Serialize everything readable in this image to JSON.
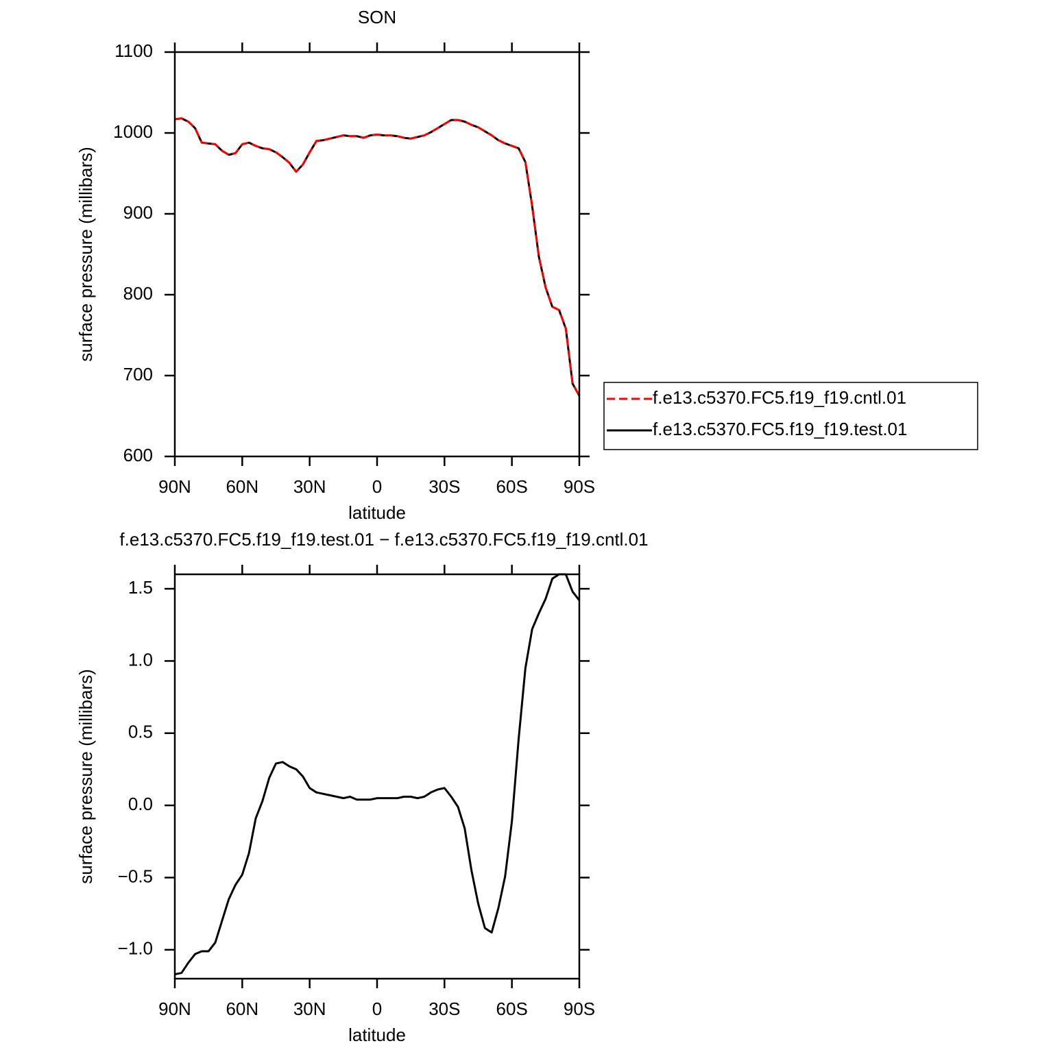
{
  "chart_data": [
    {
      "type": "line",
      "title": "SON",
      "x_label": "latitude",
      "y_label": "surface pressure (millibars)",
      "x": [
        90,
        87,
        84,
        81,
        78,
        75,
        72,
        69,
        66,
        63,
        60,
        57,
        54,
        51,
        48,
        45,
        42,
        39,
        36,
        33,
        30,
        27,
        24,
        21,
        18,
        15,
        12,
        9,
        6,
        3,
        0,
        -3,
        -6,
        -9,
        -12,
        -15,
        -18,
        -21,
        -24,
        -27,
        -30,
        -33,
        -36,
        -39,
        -42,
        -45,
        -48,
        -51,
        -54,
        -57,
        -60,
        -63,
        -66,
        -69,
        -72,
        -75,
        -78,
        -81,
        -84,
        -87,
        -90
      ],
      "xlim": [
        90,
        -90
      ],
      "xticks": [
        {
          "value": 90,
          "label": "90N"
        },
        {
          "value": 60,
          "label": "60N"
        },
        {
          "value": 30,
          "label": "30N"
        },
        0,
        {
          "value": -30,
          "label": "30S"
        },
        {
          "value": -60,
          "label": "60S"
        },
        {
          "value": -90,
          "label": "90S"
        }
      ],
      "ylim": [
        600,
        1100
      ],
      "yticks": [
        600,
        700,
        800,
        900,
        1000,
        1100
      ],
      "legend": "right",
      "series": [
        {
          "name": "f.e13.c5370.FC5.f19_f19.cntl.01",
          "color": "#ff0000",
          "dash": true,
          "values": [
            1017,
            1018,
            1014,
            1006,
            988,
            987,
            986,
            978,
            973,
            975,
            986,
            988,
            984,
            981,
            980,
            976,
            970,
            963,
            952,
            961,
            976,
            990,
            991,
            993,
            995,
            997,
            996,
            996,
            994,
            997,
            998,
            997,
            997,
            996,
            994,
            993,
            995,
            997,
            1001,
            1006,
            1011,
            1016,
            1016,
            1014,
            1010,
            1007,
            1002,
            997,
            991,
            987,
            984,
            981,
            964,
            910,
            847,
            809,
            785,
            781,
            758,
            690,
            675
          ]
        },
        {
          "name": "f.e13.c5370.FC5.f19_f19.test.01",
          "color": "#000000",
          "dash": false,
          "values": [
            1017,
            1018,
            1014,
            1006,
            988,
            987,
            986,
            978,
            973,
            975,
            986,
            988,
            984,
            981,
            980,
            976,
            970,
            963,
            952,
            961,
            976,
            990,
            991,
            993,
            995,
            997,
            996,
            996,
            994,
            997,
            998,
            997,
            997,
            996,
            994,
            993,
            995,
            997,
            1001,
            1006,
            1011,
            1016,
            1016,
            1014,
            1010,
            1007,
            1002,
            997,
            991,
            987,
            984,
            981,
            964,
            910,
            847,
            809,
            785,
            781,
            758,
            690,
            675
          ]
        }
      ]
    },
    {
      "type": "line",
      "title": "f.e13.c5370.FC5.f19_f19.test.01 − f.e13.c5370.FC5.f19_f19.cntl.01",
      "x_label": "latitude",
      "y_label": "surface pressure (millibars)",
      "x": [
        90,
        87,
        84,
        81,
        78,
        75,
        72,
        69,
        66,
        63,
        60,
        57,
        54,
        51,
        48,
        45,
        42,
        39,
        36,
        33,
        30,
        27,
        24,
        21,
        18,
        15,
        12,
        9,
        6,
        3,
        0,
        -3,
        -6,
        -9,
        -12,
        -15,
        -18,
        -21,
        -24,
        -27,
        -30,
        -33,
        -36,
        -39,
        -42,
        -45,
        -48,
        -51,
        -54,
        -57,
        -60,
        -63,
        -66,
        -69,
        -72,
        -75,
        -78,
        -81,
        -84,
        -87,
        -90
      ],
      "xlim": [
        90,
        -90
      ],
      "xticks": [
        {
          "value": 90,
          "label": "90N"
        },
        {
          "value": 60,
          "label": "60N"
        },
        {
          "value": 30,
          "label": "30N"
        },
        0,
        {
          "value": -30,
          "label": "30S"
        },
        {
          "value": -60,
          "label": "60S"
        },
        {
          "value": -90,
          "label": "90S"
        }
      ],
      "ylim": [
        -1.2,
        1.6
      ],
      "yticks": [
        {
          "value": -1,
          "label": "−1.0"
        },
        {
          "value": -0.5,
          "label": "−0.5"
        },
        {
          "value": 0,
          "label": "0.0"
        },
        0.5,
        {
          "value": 1,
          "label": "1.0"
        },
        1.5
      ],
      "color": "#000000",
      "values": [
        -1.17,
        -1.16,
        -1.09,
        -1.03,
        -1.01,
        -1.01,
        -0.95,
        -0.8,
        -0.65,
        -0.55,
        -0.48,
        -0.33,
        -0.09,
        0.03,
        0.19,
        0.29,
        0.3,
        0.27,
        0.25,
        0.2,
        0.12,
        0.09,
        0.08,
        0.07,
        0.06,
        0.05,
        0.06,
        0.04,
        0.04,
        0.04,
        0.05,
        0.05,
        0.05,
        0.05,
        0.06,
        0.06,
        0.05,
        0.06,
        0.09,
        0.11,
        0.12,
        0.06,
        -0.01,
        -0.16,
        -0.45,
        -0.68,
        -0.85,
        -0.88,
        -0.71,
        -0.49,
        -0.11,
        0.46,
        0.95,
        1.22,
        1.33,
        1.43,
        1.57,
        1.6,
        1.6,
        1.48,
        1.42
      ]
    }
  ]
}
